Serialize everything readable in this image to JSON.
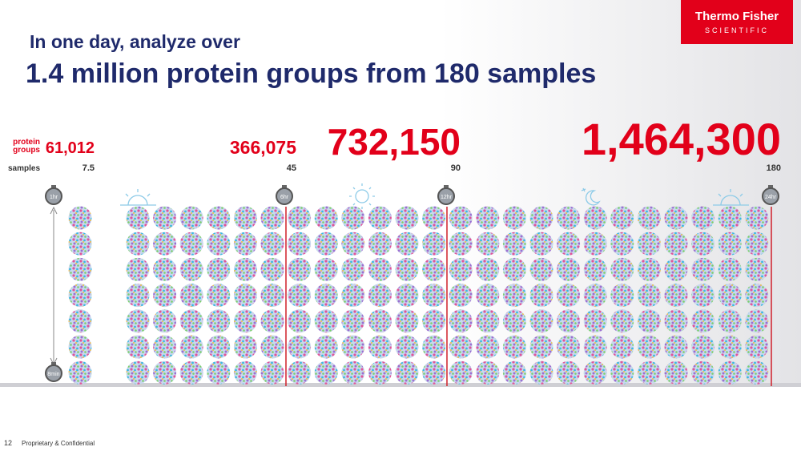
{
  "header": {
    "logo": {
      "name": "Thermo Fisher",
      "sub": "SCIENTIFIC"
    },
    "kicker": "In one day, analyze over",
    "title": "1.4 million protein groups from 180 samples"
  },
  "labels": {
    "protein_groups": [
      "protein",
      "groups"
    ],
    "samples": "samples"
  },
  "stats": [
    {
      "groups": "61,012",
      "samples": "7.5"
    },
    {
      "groups": "366,075",
      "samples": "45"
    },
    {
      "groups": "732,150",
      "samples": "90"
    },
    {
      "groups": "1,464,300",
      "samples": "180"
    }
  ],
  "timers": [
    "1hr",
    "6hr",
    "12hr",
    "24hr"
  ],
  "run_time": "8min",
  "footer": {
    "page": "12",
    "text": "Proprietary & Confidential"
  }
}
